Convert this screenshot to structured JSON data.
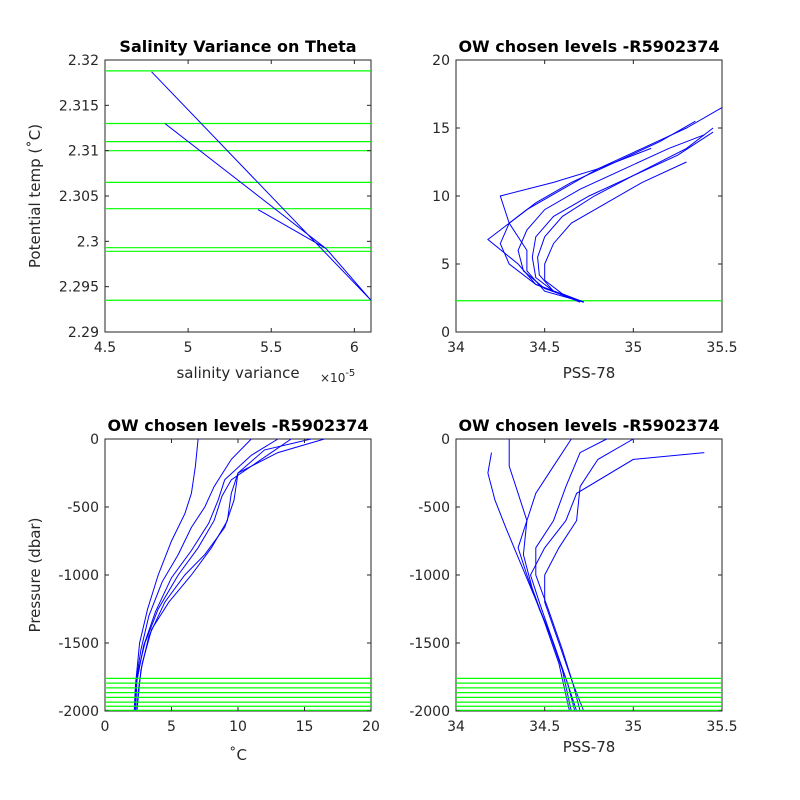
{
  "chart_data": [
    {
      "type": "line",
      "title": "Salinity Variance on Theta",
      "xlabel": "salinity variance",
      "x_exponent_label": "×10",
      "x_exponent_power": "-5",
      "ylabel": "Potential temp (˚C)",
      "xlim": [
        4.5,
        6.1
      ],
      "ylim": [
        2.29,
        2.32
      ],
      "xticks": [
        4.5,
        5,
        5.5,
        6
      ],
      "xtick_labels": [
        "4.5",
        "5",
        "5.5",
        "6"
      ],
      "yticks": [
        2.29,
        2.295,
        2.3,
        2.305,
        2.31,
        2.315,
        2.32
      ],
      "ytick_labels": [
        "2.29",
        "2.295",
        "2.3",
        "2.305",
        "2.31",
        "2.315",
        "2.32"
      ],
      "series": [
        {
          "color": "#0000ff",
          "x": [
            4.78,
            6.1,
            5.83,
            4.86,
            5.83,
            5.42,
            5.83
          ],
          "y": [
            2.3187,
            2.2935,
            2.2992,
            2.313,
            2.2992,
            2.3035,
            2.2992
          ]
        }
      ],
      "hlines": {
        "color": "#00ff00",
        "values": [
          2.3188,
          2.313,
          2.311,
          2.31,
          2.3065,
          2.3036,
          2.2993,
          2.2989,
          2.2935
        ]
      }
    },
    {
      "type": "line",
      "title": "OW chosen levels -R5902374",
      "xlabel": "PSS-78",
      "ylabel": "",
      "xlim": [
        34,
        35.5
      ],
      "ylim": [
        0,
        20
      ],
      "xticks": [
        34,
        34.5,
        35,
        35.5
      ],
      "xtick_labels": [
        "34",
        "34.5",
        "35",
        "35.5"
      ],
      "yticks": [
        0,
        5,
        10,
        15,
        20
      ],
      "ytick_labels": [
        "0",
        "5",
        "10",
        "15",
        "20"
      ],
      "series": [
        {
          "color": "#0000ff",
          "x": [
            34.72,
            34.55,
            34.45,
            34.43,
            34.45,
            34.55,
            34.75,
            35.0,
            35.3,
            35.45
          ],
          "y": [
            2.2,
            3.0,
            4.0,
            5.5,
            7.0,
            8.5,
            10.0,
            11.5,
            13.5,
            15.0
          ]
        },
        {
          "color": "#0000ff",
          "x": [
            34.72,
            34.5,
            34.38,
            34.35,
            34.4,
            34.5,
            34.7,
            34.95,
            35.2,
            35.4
          ],
          "y": [
            2.2,
            3.2,
            4.5,
            6.0,
            7.5,
            9.0,
            10.5,
            12.0,
            13.5,
            14.5
          ]
        },
        {
          "color": "#0000ff",
          "x": [
            34.72,
            34.6,
            34.5,
            34.5,
            34.55,
            34.65,
            34.85,
            35.05,
            35.3
          ],
          "y": [
            2.2,
            2.8,
            3.8,
            5.0,
            6.5,
            8.0,
            9.5,
            11.0,
            12.5
          ]
        },
        {
          "color": "#0000ff",
          "x": [
            34.72,
            34.45,
            34.3,
            34.25,
            34.3,
            34.45,
            34.65,
            34.9,
            35.15,
            35.35
          ],
          "y": [
            2.2,
            3.5,
            5.0,
            6.5,
            8.0,
            9.5,
            11.0,
            12.5,
            14.0,
            15.5
          ]
        },
        {
          "color": "#0000ff",
          "x": [
            34.7,
            34.45,
            34.35,
            34.18,
            34.25,
            34.4,
            34.6,
            34.8,
            35.1
          ],
          "y": [
            2.2,
            3.5,
            5.0,
            6.8,
            7.5,
            9.0,
            10.5,
            12.0,
            13.5
          ]
        },
        {
          "color": "#0000ff",
          "x": [
            34.72,
            34.5,
            34.4,
            34.4,
            34.3,
            34.25,
            34.55,
            34.8,
            35.05,
            35.3,
            35.5
          ],
          "y": [
            2.2,
            3.0,
            4.5,
            6.0,
            8.0,
            10.0,
            11.0,
            12.0,
            13.5,
            15.0,
            16.5
          ]
        },
        {
          "color": "#0000ff",
          "x": [
            34.72,
            34.55,
            34.47,
            34.46,
            34.5,
            34.6,
            34.78,
            35.0,
            35.25,
            35.45
          ],
          "y": [
            2.2,
            3.0,
            4.2,
            5.5,
            7.0,
            8.5,
            10.0,
            11.5,
            13.0,
            14.7
          ]
        }
      ],
      "hlines": {
        "color": "#00ff00",
        "values": [
          2.3
        ]
      }
    },
    {
      "type": "line",
      "title": "OW chosen levels -R5902374",
      "xlabel": "˚C",
      "ylabel": "Pressure (dbar)",
      "xlim": [
        0,
        20
      ],
      "ylim": [
        -2000,
        0
      ],
      "xticks": [
        0,
        5,
        10,
        15,
        20
      ],
      "xtick_labels": [
        "0",
        "5",
        "10",
        "15",
        "20"
      ],
      "yticks": [
        -2000,
        -1500,
        -1000,
        -500,
        0
      ],
      "ytick_labels": [
        "-2000",
        "-1500",
        "-1000",
        "-500",
        "0"
      ],
      "series": [
        {
          "color": "#0000ff",
          "x": [
            14.0,
            12.5,
            9.5,
            8.8,
            8.2,
            7.0,
            5.5,
            4.0,
            3.0,
            2.5,
            2.3,
            2.3
          ],
          "y": [
            0,
            -100,
            -300,
            -420,
            -600,
            -800,
            -1000,
            -1250,
            -1500,
            -1700,
            -1850,
            -2000
          ]
        },
        {
          "color": "#0000ff",
          "x": [
            16.5,
            13.0,
            10.0,
            9.5,
            9.2,
            8.0,
            6.5,
            4.8,
            3.5,
            2.8,
            2.5,
            2.4
          ],
          "y": [
            0,
            -100,
            -250,
            -400,
            -600,
            -800,
            -1000,
            -1200,
            -1400,
            -1650,
            -1850,
            -2000
          ]
        },
        {
          "color": "#0000ff",
          "x": [
            11.0,
            9.5,
            8.2,
            7.5,
            6.5,
            5.5,
            4.3,
            3.3,
            2.7,
            2.3,
            2.2
          ],
          "y": [
            0,
            -150,
            -350,
            -500,
            -650,
            -850,
            -1050,
            -1300,
            -1550,
            -1800,
            -2000
          ]
        },
        {
          "color": "#0000ff",
          "x": [
            7.0,
            6.8,
            6.5,
            6.0,
            5.0,
            4.0,
            3.2,
            2.6,
            2.3,
            2.2
          ],
          "y": [
            0,
            -200,
            -400,
            -550,
            -750,
            -1000,
            -1250,
            -1500,
            -1800,
            -2000
          ]
        },
        {
          "color": "#0000ff",
          "x": [
            15.5,
            12.0,
            10.0,
            9.7,
            9.0,
            7.5,
            6.0,
            4.5,
            3.3,
            2.7,
            2.4
          ],
          "y": [
            0,
            -80,
            -250,
            -450,
            -650,
            -850,
            -1000,
            -1200,
            -1450,
            -1700,
            -2000
          ]
        },
        {
          "color": "#0000ff",
          "x": [
            13.0,
            11.0,
            9.0,
            8.5,
            7.8,
            6.5,
            5.0,
            3.8,
            2.9,
            2.4,
            2.3
          ],
          "y": [
            0,
            -120,
            -300,
            -450,
            -620,
            -820,
            -1020,
            -1270,
            -1520,
            -1780,
            -2000
          ]
        }
      ],
      "hlines": {
        "color": "#00ff00",
        "values": [
          -1760,
          -1795,
          -1830,
          -1865,
          -1900,
          -1935,
          -1965,
          -1995
        ]
      }
    },
    {
      "type": "line",
      "title": "OW chosen levels -R5902374",
      "xlabel": "PSS-78",
      "ylabel": "",
      "xlim": [
        34,
        35.5
      ],
      "ylim": [
        -2000,
        0
      ],
      "xticks": [
        34,
        34.5,
        35,
        35.5
      ],
      "xtick_labels": [
        "34",
        "34.5",
        "35",
        "35.5"
      ],
      "yticks": [
        -2000,
        -1500,
        -1000,
        -500,
        0
      ],
      "ytick_labels": [
        "-2000",
        "-1500",
        "-1000",
        "-500",
        "0"
      ],
      "series": [
        {
          "color": "#0000ff",
          "x": [
            35.4,
            35.0,
            34.68,
            34.62,
            34.5,
            34.42,
            34.47,
            34.55,
            34.63,
            34.68
          ],
          "y": [
            -100,
            -150,
            -400,
            -600,
            -800,
            -1000,
            -1200,
            -1500,
            -1800,
            -2000
          ]
        },
        {
          "color": "#0000ff",
          "x": [
            35.0,
            34.8,
            34.7,
            34.68,
            34.58,
            34.5,
            34.5,
            34.58,
            34.66,
            34.72
          ],
          "y": [
            0,
            -150,
            -350,
            -600,
            -800,
            -1000,
            -1200,
            -1500,
            -1800,
            -2000
          ]
        },
        {
          "color": "#0000ff",
          "x": [
            34.65,
            34.55,
            34.45,
            34.4,
            34.35,
            34.4,
            34.47,
            34.55,
            34.63,
            34.67
          ],
          "y": [
            0,
            -200,
            -400,
            -600,
            -800,
            -1000,
            -1250,
            -1500,
            -1800,
            -2000
          ]
        },
        {
          "color": "#0000ff",
          "x": [
            34.2,
            34.18,
            34.22,
            34.28,
            34.36,
            34.44,
            34.52,
            34.6,
            34.65
          ],
          "y": [
            -100,
            -250,
            -450,
            -650,
            -900,
            -1150,
            -1400,
            -1700,
            -2000
          ]
        },
        {
          "color": "#0000ff",
          "x": [
            34.85,
            34.7,
            34.62,
            34.55,
            34.45,
            34.45,
            34.52,
            34.6,
            34.66,
            34.7
          ],
          "y": [
            0,
            -100,
            -350,
            -600,
            -800,
            -1000,
            -1250,
            -1550,
            -1800,
            -2000
          ]
        },
        {
          "color": "#0000ff",
          "x": [
            34.3,
            34.3,
            34.35,
            34.4,
            34.38,
            34.43,
            34.5,
            34.58,
            34.64
          ],
          "y": [
            0,
            -200,
            -400,
            -600,
            -850,
            -1100,
            -1350,
            -1650,
            -2000
          ]
        }
      ],
      "hlines": {
        "color": "#00ff00",
        "values": [
          -1760,
          -1795,
          -1830,
          -1865,
          -1900,
          -1935,
          -1965,
          -1995
        ]
      }
    }
  ]
}
